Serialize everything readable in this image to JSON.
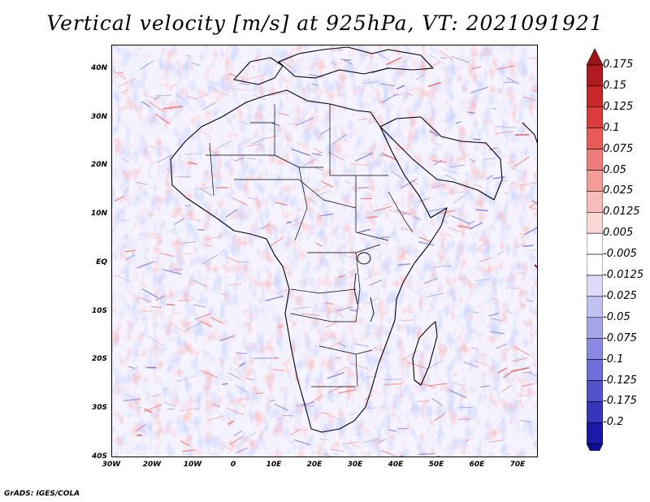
{
  "title": "Vertical velocity [m/s] at 925hPa, VT: 2021091921",
  "credit": "GrADS: IGES/COLA",
  "map": {
    "region": "Africa",
    "lon_range": [
      -30,
      75
    ],
    "lat_range": [
      -40,
      45
    ],
    "lat_ticks": [
      {
        "label": "40N",
        "value": 40
      },
      {
        "label": "30N",
        "value": 30
      },
      {
        "label": "20N",
        "value": 20
      },
      {
        "label": "10N",
        "value": 10
      },
      {
        "label": "EQ",
        "value": 0
      },
      {
        "label": "10S",
        "value": -10
      },
      {
        "label": "20S",
        "value": -20
      },
      {
        "label": "30S",
        "value": -30
      },
      {
        "label": "40S",
        "value": -40
      }
    ],
    "lon_ticks": [
      {
        "label": "30W",
        "value": -30
      },
      {
        "label": "20W",
        "value": -20
      },
      {
        "label": "10W",
        "value": -10
      },
      {
        "label": "0",
        "value": 0
      },
      {
        "label": "10E",
        "value": 10
      },
      {
        "label": "20E",
        "value": 20
      },
      {
        "label": "30E",
        "value": 30
      },
      {
        "label": "40E",
        "value": 40
      },
      {
        "label": "50E",
        "value": 50
      },
      {
        "label": "60E",
        "value": 60
      },
      {
        "label": "70E",
        "value": 70
      }
    ]
  },
  "colorbar": {
    "levels": [
      {
        "label": "0.175",
        "color": "#b01a20"
      },
      {
        "label": "0.15",
        "color": "#c8282c"
      },
      {
        "label": "0.125",
        "color": "#dc3c3c"
      },
      {
        "label": "0.1",
        "color": "#e85a58"
      },
      {
        "label": "0.075",
        "color": "#ef7c78"
      },
      {
        "label": "0.05",
        "color": "#f49c98"
      },
      {
        "label": "0.025",
        "color": "#f8bcb8"
      },
      {
        "label": "0.0125",
        "color": "#fbd8d6"
      },
      {
        "label": "0.005",
        "color": "#ffffff"
      },
      {
        "label": "-0.005",
        "color": "#ffffff"
      },
      {
        "label": "-0.0125",
        "color": "#dcdcf8"
      },
      {
        "label": "-0.025",
        "color": "#c2c2f2"
      },
      {
        "label": "-0.05",
        "color": "#a6a6ea"
      },
      {
        "label": "-0.075",
        "color": "#8a8ae2"
      },
      {
        "label": "-0.1",
        "color": "#6e6ed8"
      },
      {
        "label": "-0.125",
        "color": "#5252cc"
      },
      {
        "label": "-0.175",
        "color": "#3636bc"
      },
      {
        "label": "-0.2",
        "color": "#1a1aa8"
      }
    ],
    "top_color": "#a01418",
    "bottom_color": "#0c0c96"
  }
}
